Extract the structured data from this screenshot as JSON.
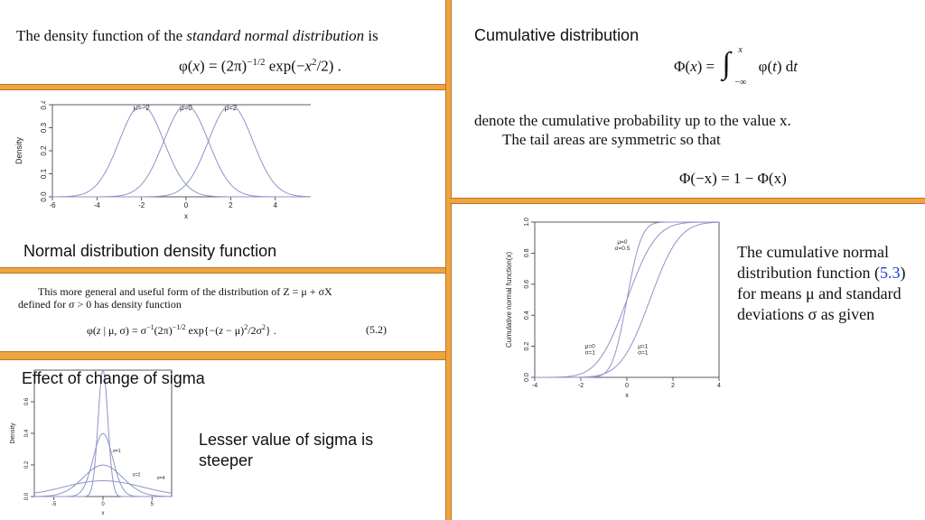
{
  "top_left": {
    "definition_plain": "The density function of the",
    "definition_italic": "standard normal distribution",
    "definition_end": "is",
    "equation": "φ(x) = (2π)−1/2 exp(−x²/2) ."
  },
  "chart_density": {
    "caption": "Normal distribution density function",
    "chart_data": {
      "type": "line",
      "xlabel": "x",
      "ylabel": "Density",
      "xlim": [
        -6,
        6
      ],
      "ylim": [
        0,
        0.4
      ],
      "x_ticks": [
        "-6",
        "-4",
        "-2",
        "0",
        "2",
        "4",
        "6"
      ],
      "y_ticks": [
        "0.0",
        "0.1",
        "0.2",
        "0.3",
        "0.4"
      ],
      "annotations": [
        "μ=−2",
        "μ=0",
        "μ=2"
      ],
      "series": [
        {
          "mu": -2,
          "sigma": 1,
          "peak": 0.399
        },
        {
          "mu": 0,
          "sigma": 1,
          "peak": 0.399
        },
        {
          "mu": 2,
          "sigma": 1,
          "peak": 0.399
        }
      ]
    }
  },
  "general_form": {
    "line1": "This more general and useful form of the distribution of  Z = μ + σX",
    "line2": "defined for  σ > 0  has density function",
    "equation": "φ(z | μ, σ) = σ−1(2π)−1/2 exp{−(z − μ)²/2σ²} .",
    "eq_number": "(5.2)"
  },
  "sigma_panel": {
    "heading": "Effect of change of sigma",
    "note": "Lesser value of sigma is steeper",
    "chart_data": {
      "type": "line",
      "xlabel": "x",
      "ylabel": "Density",
      "xlim": [
        -7,
        7
      ],
      "ylim": [
        0,
        0.8
      ],
      "x_ticks": [
        "-5",
        "0",
        "5"
      ],
      "y_ticks": [
        "0.0",
        "0.2",
        "0.4",
        "0.6"
      ],
      "annotations": [
        "σ=1",
        "σ=2",
        "σ=4"
      ],
      "series": [
        {
          "mu": 0,
          "sigma": 0.5,
          "peak": 0.798
        },
        {
          "mu": 0,
          "sigma": 1,
          "peak": 0.399
        },
        {
          "mu": 0,
          "sigma": 2,
          "peak": 0.199
        },
        {
          "mu": 0,
          "sigma": 4,
          "peak": 0.1
        }
      ]
    }
  },
  "top_right": {
    "heading": "Cumulative distribution",
    "equation": "Φ(x) = ∫−∞x φ(t) dt",
    "text1": "denote the cumulative probability up to the value  x.",
    "text2": "The tail areas are symmetric so that",
    "equation2": "Φ(−x) = 1 − Φ(x)"
  },
  "cdf_panel": {
    "description_pre": "The cumulative normal distribution function (",
    "ref": "5.3",
    "description_post": ") for means μ and standard deviations σ as given",
    "chart_data": {
      "type": "line",
      "xlabel": "x",
      "ylabel": "Cumulative normal function(x)",
      "xlim": [
        -4,
        4
      ],
      "ylim": [
        0,
        1
      ],
      "x_ticks": [
        "-4",
        "-2",
        "0",
        "2",
        "4"
      ],
      "y_ticks": [
        "0.0",
        "0.2",
        "0.4",
        "0.6",
        "0.8",
        "1.0"
      ],
      "annotations": [
        [
          "μ=0",
          "σ=0.5"
        ],
        [
          "μ=0",
          "σ=1"
        ],
        [
          "μ=1",
          "σ=1"
        ]
      ],
      "series": [
        {
          "mu": 0,
          "sigma": 0.5
        },
        {
          "mu": 0,
          "sigma": 1
        },
        {
          "mu": 1,
          "sigma": 1
        }
      ]
    }
  },
  "colors": {
    "divider": "#f0a43e",
    "curve": "#8e93c9",
    "link": "#1c3fd0"
  }
}
